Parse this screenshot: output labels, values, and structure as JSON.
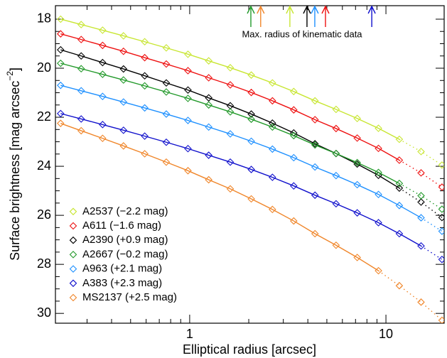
{
  "chart_data": {
    "type": "scatter",
    "xlabel": "Elliptical radius [arcsec]",
    "ylabel": {
      "text": "Surface brightness [mag arcsec",
      "superscript": "−2",
      "suffix": "]"
    },
    "xscale": "log",
    "xlim": [
      0.207,
      19.8
    ],
    "xticks": [
      1,
      10
    ],
    "xminorticks": [
      0.3,
      0.4,
      0.5,
      0.6,
      0.7,
      0.8,
      0.9,
      2,
      3,
      4,
      5,
      6,
      7,
      8,
      9
    ],
    "ylim": [
      17.45,
      30.4
    ],
    "invert_y": true,
    "yticks": [
      18,
      20,
      22,
      24,
      26,
      28,
      30
    ],
    "yminorticks": [
      18.5,
      19,
      19.5,
      20.5,
      21,
      21.5,
      22.5,
      23,
      23.5,
      24.5,
      25,
      25.5,
      26.5,
      27,
      27.5,
      28.5,
      29,
      29.5
    ],
    "legend": "lower left",
    "x": [
      0.22,
      0.28,
      0.36,
      0.46,
      0.59,
      0.76,
      0.98,
      1.25,
      1.61,
      2.06,
      2.64,
      3.39,
      4.35,
      5.57,
      7.14,
      9.16,
      11.7,
      15.1,
      19.3
    ],
    "series": [
      {
        "name": "A2537 (−2.2 mag)",
        "color": "#c8e632",
        "dotted_from_x": 11.7,
        "values": [
          18.0,
          18.22,
          18.45,
          18.68,
          18.92,
          19.17,
          19.43,
          19.7,
          19.98,
          20.28,
          20.6,
          20.95,
          21.33,
          21.68,
          22.05,
          22.45,
          22.9,
          23.4,
          23.95
        ]
      },
      {
        "name": "A611 (−1.6 mag)",
        "color": "#ee1111",
        "dotted_from_x": 11.7,
        "values": [
          18.6,
          18.83,
          19.07,
          19.31,
          19.57,
          19.83,
          20.1,
          20.39,
          20.68,
          20.99,
          21.33,
          21.7,
          22.1,
          22.46,
          22.85,
          23.27,
          23.75,
          24.27,
          24.85
        ]
      },
      {
        "name": "A2390 (+0.9 mag)",
        "color": "#000000",
        "dotted_from_x": 11.7,
        "values": [
          19.25,
          19.5,
          19.77,
          20.03,
          20.31,
          20.6,
          20.89,
          21.21,
          21.53,
          21.87,
          22.24,
          22.64,
          23.08,
          23.48,
          23.91,
          24.37,
          24.89,
          25.46,
          26.09
        ]
      },
      {
        "name": "A2667 (−0.2 mag)",
        "color": "#22992a",
        "dotted_from_x": 11.7,
        "values": [
          19.8,
          20.02,
          20.25,
          20.48,
          20.72,
          20.97,
          21.23,
          21.5,
          21.78,
          22.08,
          22.4,
          22.75,
          23.13,
          23.48,
          23.85,
          24.25,
          24.7,
          25.2,
          25.75
        ]
      },
      {
        "name": "A963 (+2.1 mag)",
        "color": "#1e90ff",
        "dotted_from_x": 15.1,
        "values": [
          20.7,
          20.92,
          21.15,
          21.38,
          21.62,
          21.87,
          22.13,
          22.4,
          22.68,
          22.98,
          23.3,
          23.65,
          24.03,
          24.38,
          24.75,
          25.15,
          25.6,
          26.1,
          26.65
        ]
      },
      {
        "name": "A383 (+2.3 mag)",
        "color": "#1010cc",
        "dotted_from_x": 15.1,
        "values": [
          21.85,
          22.07,
          22.3,
          22.53,
          22.77,
          23.02,
          23.28,
          23.55,
          23.83,
          24.13,
          24.45,
          24.8,
          25.18,
          25.53,
          25.9,
          26.3,
          26.75,
          27.25,
          27.8
        ]
      },
      {
        "name": "MS2137 (+2.5 mag)",
        "color": "#f0862a",
        "dotted_from_x": 9.16,
        "values": [
          22.25,
          22.55,
          22.86,
          23.17,
          23.49,
          23.83,
          24.18,
          24.55,
          24.92,
          25.33,
          25.76,
          26.23,
          26.75,
          27.22,
          27.72,
          28.26,
          28.87,
          29.54,
          30.28
        ]
      }
    ],
    "annotation": {
      "text": "Max. radius of kinematic data",
      "arrows": [
        {
          "x": 2.05,
          "color": "#22992a"
        },
        {
          "x": 2.3,
          "color": "#f0862a"
        },
        {
          "x": 3.24,
          "color": "#c8e632"
        },
        {
          "x": 3.96,
          "color": "#000000"
        },
        {
          "x": 4.34,
          "color": "#1e90ff"
        },
        {
          "x": 4.92,
          "color": "#ee1111"
        },
        {
          "x": 8.47,
          "color": "#1010cc"
        }
      ]
    }
  }
}
